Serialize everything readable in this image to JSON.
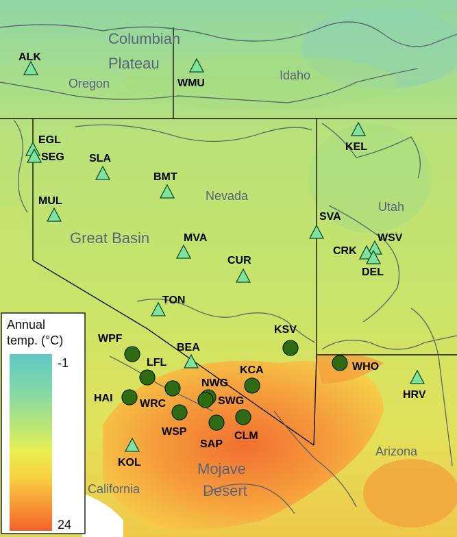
{
  "regions": [
    {
      "id": "columbian",
      "text": "Columbian"
    },
    {
      "id": "plateau",
      "text": "Plateau"
    },
    {
      "id": "oregon",
      "text": "Oregon"
    },
    {
      "id": "idaho",
      "text": "Idaho"
    },
    {
      "id": "nevada",
      "text": "Nevada"
    },
    {
      "id": "utah",
      "text": "Utah"
    },
    {
      "id": "great-basin",
      "text": "Great Basin"
    },
    {
      "id": "mojave",
      "text": "Mojave"
    },
    {
      "id": "desert",
      "text": "Desert"
    },
    {
      "id": "arizona",
      "text": "Arizona"
    },
    {
      "id": "california",
      "text": "California"
    }
  ],
  "sites_triangle": [
    "ALK",
    "WMU",
    "EGL",
    "SEG",
    "SLA",
    "BMT",
    "MUL",
    "KEL",
    "SVA",
    "WSV",
    "CRK",
    "DEL",
    "MVA",
    "CUR",
    "TON",
    "BEA",
    "HRV",
    "KOL"
  ],
  "sites_circle": [
    "WPF",
    "LFL",
    "HAI",
    "WRC",
    "WSP",
    "NWG",
    "SWG",
    "SAP",
    "CLM",
    "KCA",
    "KSV",
    "WHO"
  ],
  "legend": {
    "title_line1": "Annual",
    "title_line2": "temp. (°C)",
    "max_label": "-1",
    "min_label": "24"
  },
  "colors": {
    "triangle_fill": "#7fe3a0",
    "circle_fill": "#2e6b12"
  }
}
